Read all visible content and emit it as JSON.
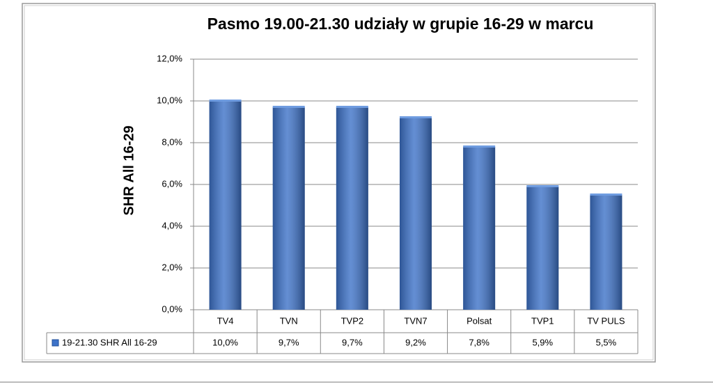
{
  "chart_data": {
    "type": "bar",
    "title": "Pasmo  19.00-21.30 udziały  w grupie  16-29 w marcu",
    "y_label": "SHR All 16-29",
    "categories": [
      "TV4",
      "TVN",
      "TVP2",
      "TVN7",
      "Polsat",
      "TVP1",
      "TV PULS"
    ],
    "series": [
      {
        "name": "19-21.30 SHR All 16-29",
        "color": "#3d72c8",
        "values": [
          10.0,
          9.7,
          9.7,
          9.2,
          7.8,
          5.9,
          5.5
        ],
        "value_labels": [
          "10,0%",
          "9,7%",
          "9,7%",
          "9,2%",
          "7,8%",
          "5,9%",
          "5,5%"
        ]
      }
    ],
    "ylim": [
      0,
      12
    ],
    "yticks": [
      {
        "value": 0,
        "label": "0,0%"
      },
      {
        "value": 2,
        "label": "2,0%"
      },
      {
        "value": 4,
        "label": "4,0%"
      },
      {
        "value": 6,
        "label": "6,0%"
      },
      {
        "value": 8,
        "label": "8,0%"
      },
      {
        "value": 10,
        "label": "10,0%"
      },
      {
        "value": 12,
        "label": "12,0%"
      }
    ],
    "grid": true
  }
}
